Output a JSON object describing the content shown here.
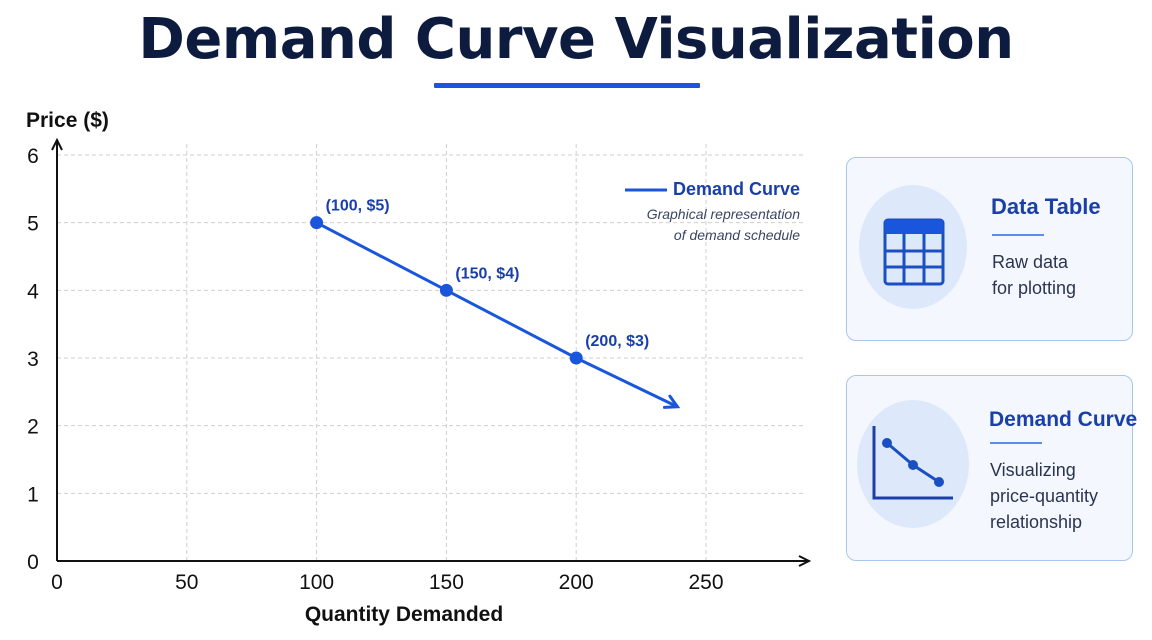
{
  "page": {
    "title": "Demand Curve Visualization",
    "accent_color": "#1a56db",
    "title_color": "#0d1b3e"
  },
  "chart_data": {
    "type": "line",
    "title": "",
    "xlabel": "Quantity Demanded",
    "ylabel": "Price ($)",
    "xlim": [
      0,
      250
    ],
    "ylim": [
      0,
      6
    ],
    "x_ticks": [
      0,
      50,
      100,
      150,
      200,
      250
    ],
    "y_ticks": [
      0,
      1,
      2,
      3,
      4,
      5,
      6
    ],
    "grid": true,
    "grid_style": "dashed",
    "legend_position": "top-right",
    "trend_arrow": "extends past last point toward lower-right",
    "series": [
      {
        "name": "Demand Curve",
        "color": "#1a56db",
        "x": [
          100,
          150,
          200
        ],
        "y": [
          5,
          4,
          3
        ],
        "point_labels": [
          "(100, $5)",
          "(150, $4)",
          "(200, $3)"
        ]
      }
    ],
    "legend": {
      "label": "Demand Curve",
      "caption_line1": "Graphical representation",
      "caption_line2": "of demand schedule"
    }
  },
  "cards": [
    {
      "heading": "Data Table",
      "desc_line1": "Raw data",
      "desc_line2": "for plotting",
      "icon": "table-icon"
    },
    {
      "heading": "Demand Curve",
      "desc_line1": "Visualizing",
      "desc_line2": "price-quantity",
      "desc_line3": "relationship",
      "icon": "demand-curve-icon"
    }
  ]
}
